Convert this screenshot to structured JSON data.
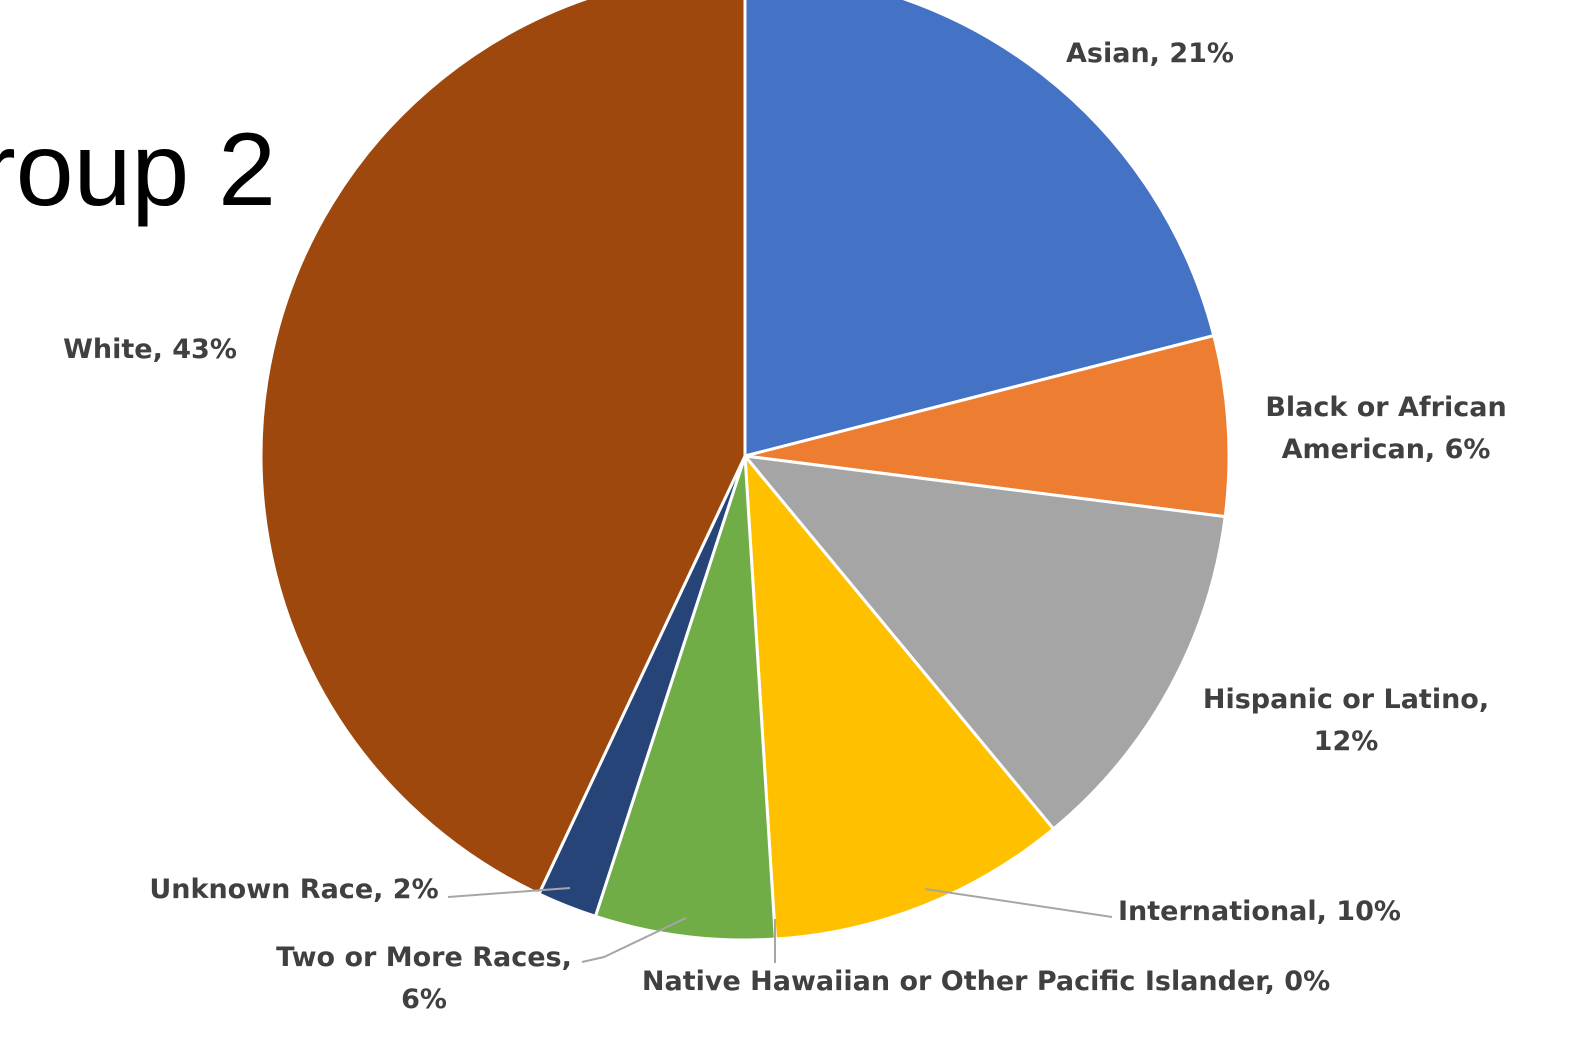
{
  "slide": {
    "title": "roup 2"
  },
  "chart_data": {
    "type": "pie",
    "title": "",
    "slices": [
      {
        "label": "Asian",
        "label_text": "Asian, 21%",
        "value": 21,
        "color": "#4472C4"
      },
      {
        "label": "Black or African American",
        "label_text": "Black or African American, 6%",
        "value": 6,
        "color": "#ED7D31"
      },
      {
        "label": "Hispanic or Latino",
        "label_text": "Hispanic or Latino, 12%",
        "value": 12,
        "color": "#A5A5A5"
      },
      {
        "label": "International",
        "label_text": "International, 10%",
        "value": 10,
        "color": "#FFC000"
      },
      {
        "label": "Native Hawaiian or Other Pacific Islander",
        "label_text": "Native Hawaiian or Other Pacific Islander, 0%",
        "value": 0,
        "color": "#5B9BD5"
      },
      {
        "label": "Two or More Races",
        "label_text": "Two or More Races, 6%",
        "value": 6,
        "color": "#70AD47"
      },
      {
        "label": "Unknown Race",
        "label_text": "Unknown Race, 2%",
        "value": 2,
        "color": "#264478"
      },
      {
        "label": "White",
        "label_text": "White, 43%",
        "value": 43,
        "color": "#9E480E"
      }
    ],
    "start_angle": "12 o'clock",
    "direction": "clockwise",
    "legend": "none",
    "data_labels": "outside with leader lines"
  }
}
